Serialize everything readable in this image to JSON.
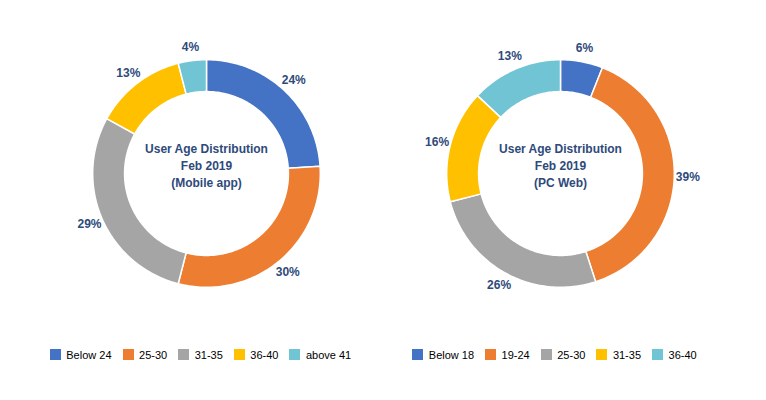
{
  "chart_data": [
    {
      "type": "donut",
      "title": "User Age Distribution\nFeb 2019\n(Mobile app)",
      "categories": [
        "Below 24",
        "25-30",
        "31-35",
        "36-40",
        "above 41"
      ],
      "values": [
        24,
        30,
        29,
        13,
        4
      ],
      "value_labels": [
        "24%",
        "30%",
        "29%",
        "13%",
        "4%"
      ],
      "colors": [
        "#4472c4",
        "#ed7d31",
        "#a5a5a5",
        "#ffc000",
        "#70c4d4"
      ],
      "data_labels": true,
      "legend": "bottom"
    },
    {
      "type": "donut",
      "title": "User Age Distribution\nFeb 2019\n(PC Web)",
      "categories": [
        "Below 18",
        "19-24",
        "25-30",
        "31-35",
        "36-40"
      ],
      "values": [
        6,
        39,
        26,
        16,
        13
      ],
      "value_labels": [
        "6%",
        "39%",
        "26%",
        "16%",
        "13%"
      ],
      "colors": [
        "#4472c4",
        "#ed7d31",
        "#a5a5a5",
        "#ffc000",
        "#70c4d4"
      ],
      "data_labels": true,
      "legend": "bottom"
    }
  ]
}
